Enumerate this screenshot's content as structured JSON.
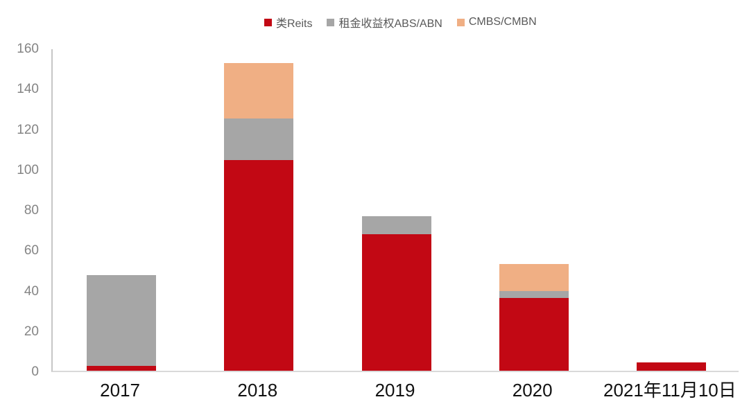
{
  "chart_data": {
    "type": "bar",
    "stacked": true,
    "title": "",
    "categories": [
      "2017",
      "2018",
      "2019",
      "2020",
      "2021年11月10日"
    ],
    "series": [
      {
        "name": "类Reits",
        "color": "#c20814",
        "values": [
          2.5,
          104.5,
          67.5,
          36,
          4
        ]
      },
      {
        "name": "租金收益权ABS/ABN",
        "color": "#a6a6a6",
        "values": [
          45,
          20.5,
          9,
          3.5,
          0
        ]
      },
      {
        "name": "CMBS/CMBN",
        "color": "#f0af84",
        "values": [
          0,
          27.5,
          0,
          13.5,
          0
        ]
      }
    ],
    "totals": [
      47.5,
      152.5,
      76.5,
      53,
      4
    ],
    "ylim": [
      0,
      160
    ],
    "yticks": [
      0,
      20,
      40,
      60,
      80,
      100,
      120,
      140,
      160
    ],
    "grid": false,
    "legend_position": "top",
    "background": "#ffffff"
  },
  "colors": {
    "y_axis_line": "#c6c6c6",
    "x_axis_line": "#d9d9d9",
    "y_tick_label": "#848484",
    "x_tick_label": "#111111",
    "legend_text": "#595959"
  }
}
